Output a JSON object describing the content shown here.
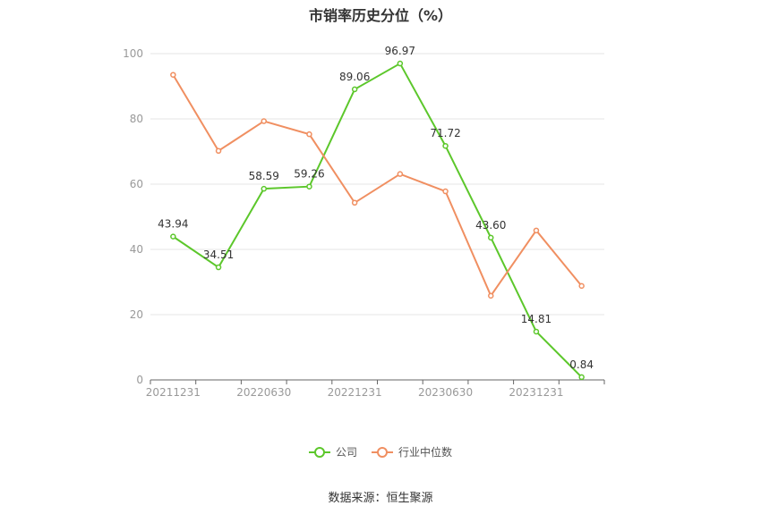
{
  "title": "市销率历史分位（%）",
  "source": "数据来源：恒生聚源",
  "chart_data": {
    "type": "line",
    "title": "市销率历史分位（%）",
    "xlabel": "",
    "ylabel": "",
    "ylim": [
      0,
      100
    ],
    "yticks": [
      0,
      20,
      40,
      60,
      80,
      100
    ],
    "x": [
      "20211231",
      "20220331",
      "20220630",
      "20220930",
      "20221231",
      "20230331",
      "20230630",
      "20230930",
      "20231231",
      "20240331"
    ],
    "x_tick_labels": [
      "20211231",
      "20220630",
      "20221231",
      "20230630",
      "20231231"
    ],
    "grid": true,
    "legend_position": "bottom-center",
    "series": [
      {
        "name": "公司",
        "color": "#5cc72b",
        "values": [
          43.94,
          34.51,
          58.59,
          59.26,
          89.06,
          96.97,
          71.72,
          43.6,
          14.81,
          0.84
        ],
        "labels": [
          "43.94",
          "34.51",
          "58.59",
          "59.26",
          "89.06",
          "96.97",
          "71.72",
          "43.60",
          "14.81",
          "0.84"
        ]
      },
      {
        "name": "行业中位数",
        "color": "#f08f61",
        "values": [
          93.5,
          70.2,
          79.3,
          75.3,
          54.3,
          63.1,
          57.8,
          25.8,
          45.8,
          28.8
        ]
      }
    ]
  }
}
